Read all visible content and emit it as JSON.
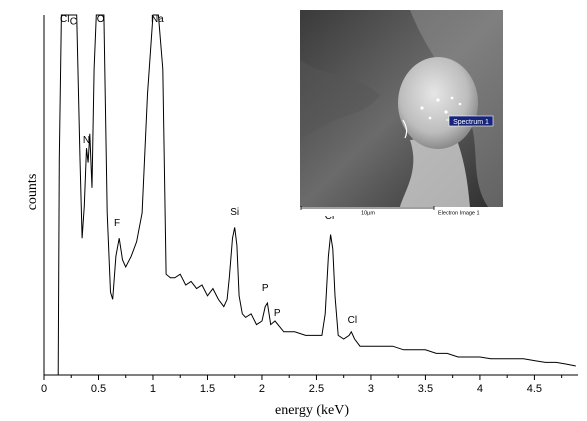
{
  "chart_data": {
    "type": "line",
    "xlabel": "energy (keV)",
    "ylabel": "counts",
    "xlim": [
      0,
      4.9
    ],
    "ylim": [
      0,
      100
    ],
    "x_ticks": [
      "0",
      "0.5",
      "1",
      "1.5",
      "2",
      "2.5",
      "3",
      "3.5",
      "4",
      "4.5"
    ],
    "x_tick_values": [
      0,
      0.5,
      1,
      1.5,
      2,
      2.5,
      3,
      3.5,
      4,
      4.5
    ],
    "series": [
      {
        "points": [
          [
            0.13,
            0
          ],
          [
            0.14,
            60
          ],
          [
            0.16,
            100
          ],
          [
            0.2,
            100
          ],
          [
            0.26,
            100
          ],
          [
            0.3,
            100
          ],
          [
            0.33,
            60
          ],
          [
            0.35,
            38
          ],
          [
            0.37,
            47
          ],
          [
            0.39,
            63
          ],
          [
            0.405,
            59
          ],
          [
            0.42,
            67
          ],
          [
            0.44,
            52
          ],
          [
            0.46,
            85
          ],
          [
            0.48,
            100
          ],
          [
            0.52,
            100
          ],
          [
            0.55,
            100
          ],
          [
            0.58,
            45
          ],
          [
            0.61,
            23
          ],
          [
            0.63,
            21
          ],
          [
            0.66,
            33
          ],
          [
            0.69,
            38
          ],
          [
            0.72,
            32
          ],
          [
            0.75,
            30
          ],
          [
            0.8,
            33
          ],
          [
            0.85,
            37
          ],
          [
            0.9,
            45
          ],
          [
            0.95,
            78
          ],
          [
            1.0,
            100
          ],
          [
            1.05,
            100
          ],
          [
            1.09,
            85
          ],
          [
            1.12,
            28
          ],
          [
            1.16,
            27
          ],
          [
            1.2,
            27
          ],
          [
            1.25,
            28
          ],
          [
            1.3,
            25
          ],
          [
            1.35,
            26
          ],
          [
            1.4,
            24
          ],
          [
            1.45,
            25
          ],
          [
            1.5,
            22
          ],
          [
            1.55,
            24
          ],
          [
            1.6,
            21
          ],
          [
            1.65,
            19
          ],
          [
            1.68,
            21
          ],
          [
            1.7,
            27
          ],
          [
            1.73,
            38
          ],
          [
            1.75,
            41
          ],
          [
            1.77,
            36
          ],
          [
            1.79,
            22
          ],
          [
            1.82,
            17
          ],
          [
            1.85,
            16
          ],
          [
            1.9,
            17
          ],
          [
            1.95,
            14
          ],
          [
            2.0,
            15
          ],
          [
            2.03,
            19
          ],
          [
            2.05,
            20
          ],
          [
            2.08,
            14
          ],
          [
            2.12,
            15
          ],
          [
            2.2,
            12
          ],
          [
            2.3,
            12
          ],
          [
            2.4,
            11
          ],
          [
            2.5,
            11
          ],
          [
            2.55,
            11
          ],
          [
            2.58,
            17
          ],
          [
            2.61,
            33
          ],
          [
            2.63,
            39
          ],
          [
            2.65,
            35
          ],
          [
            2.67,
            22
          ],
          [
            2.7,
            11
          ],
          [
            2.75,
            10
          ],
          [
            2.8,
            11
          ],
          [
            2.82,
            12
          ],
          [
            2.85,
            10
          ],
          [
            2.9,
            8
          ],
          [
            3.0,
            8
          ],
          [
            3.1,
            8
          ],
          [
            3.2,
            8
          ],
          [
            3.3,
            7
          ],
          [
            3.4,
            7
          ],
          [
            3.5,
            7
          ],
          [
            3.6,
            6
          ],
          [
            3.7,
            6
          ],
          [
            3.8,
            5
          ],
          [
            3.9,
            5
          ],
          [
            4.0,
            5
          ],
          [
            4.1,
            4.5
          ],
          [
            4.2,
            4.5
          ],
          [
            4.3,
            4.5
          ],
          [
            4.4,
            4.5
          ],
          [
            4.5,
            4
          ],
          [
            4.6,
            3.5
          ],
          [
            4.7,
            3.5
          ],
          [
            4.8,
            3
          ],
          [
            4.88,
            2.5
          ]
        ]
      }
    ],
    "annotations": [
      {
        "text": "Cl",
        "x": 0.19,
        "y": 100
      },
      {
        "text": "C",
        "x": 0.27,
        "y": 96
      },
      {
        "text": "N",
        "x": 0.39,
        "y": 63
      },
      {
        "text": "O",
        "x": 0.52,
        "y": 100
      },
      {
        "text": "Na",
        "x": 1.04,
        "y": 100
      },
      {
        "text": "F",
        "x": 0.67,
        "y": 40
      },
      {
        "text": "Si",
        "x": 1.75,
        "y": 43
      },
      {
        "text": "P",
        "x": 2.03,
        "y": 22
      },
      {
        "text": "P",
        "x": 2.14,
        "y": 15
      },
      {
        "text": "Cl",
        "x": 2.62,
        "y": 42
      },
      {
        "text": "Cl",
        "x": 2.83,
        "y": 13
      }
    ]
  },
  "inset": {
    "spectrum_label": "Spectrum 1",
    "scale_text": "10µm",
    "caption": "Electron Image 1"
  }
}
